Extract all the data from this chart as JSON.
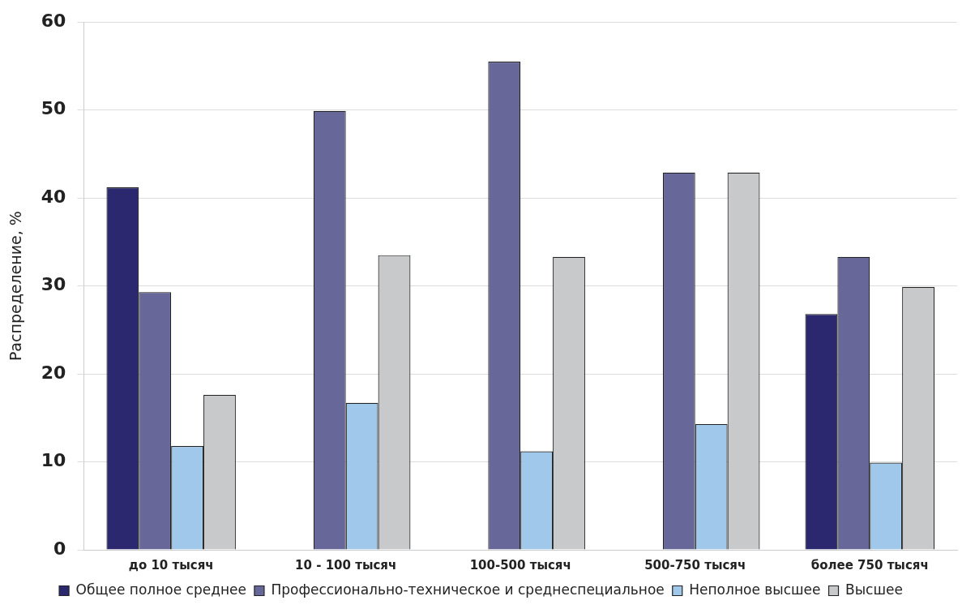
{
  "chart_data": {
    "type": "bar",
    "ylabel": "Распределение, %",
    "categories": [
      "до 10 тысяч",
      "10 - 100 тысяч",
      "100-500 тысяч",
      "500-750 тысяч",
      "более 750 тысяч"
    ],
    "series": [
      {
        "name": "Общее полное среднее",
        "color": "#2b2870",
        "values": [
          41.2,
          null,
          null,
          null,
          26.8
        ]
      },
      {
        "name": "Профессионально-техническое и среднеспециальное",
        "color": "#67679a",
        "values": [
          29.3,
          49.9,
          55.5,
          42.9,
          33.3
        ]
      },
      {
        "name": "Неполное высшее",
        "color": "#9fc8ea",
        "values": [
          11.8,
          16.7,
          11.2,
          14.3,
          9.9
        ]
      },
      {
        "name": "Высшее",
        "color": "#c8c9cb",
        "values": [
          17.6,
          33.5,
          33.3,
          42.9,
          29.9
        ]
      }
    ],
    "ylim": [
      0,
      60
    ],
    "yticks": [
      0,
      10,
      20,
      30,
      40,
      50,
      60
    ],
    "grid": "y",
    "legend": "bottom"
  }
}
